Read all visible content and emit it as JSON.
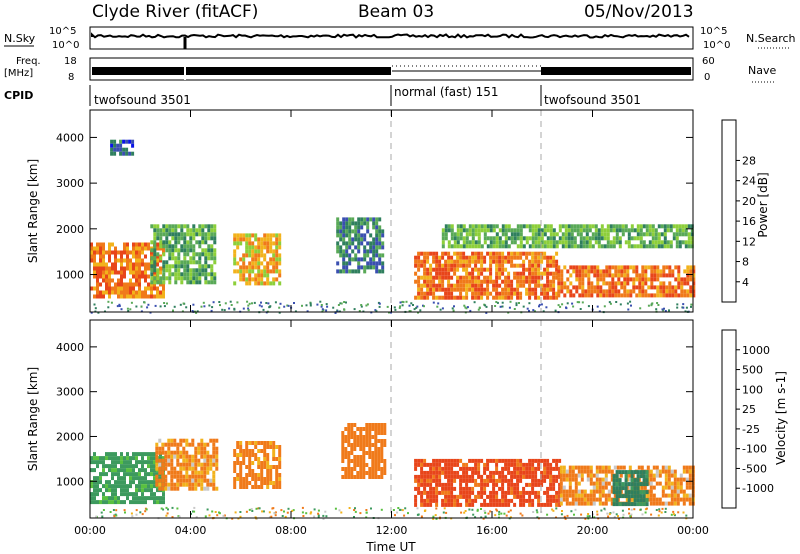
{
  "header": {
    "station": "Clyde River (fitACF)",
    "beam": "Beam 03",
    "date": "05/Nov/2013"
  },
  "status_panel": {
    "nsky_label": "N.Sky",
    "nsky_ticks": [
      "10^5",
      "10^0"
    ],
    "nsearch_label": "N.Search",
    "freq_label": "Freq.",
    "freq_unit": "[MHz]",
    "freq_ticks": [
      "18",
      "8"
    ],
    "nave_label": "Nave",
    "nave_ticks": [
      "60",
      "0"
    ],
    "cpid_label": "CPID",
    "cpid_segments": [
      {
        "label": "twofsound 3501",
        "start_hour": 0,
        "end_hour": 12
      },
      {
        "label": "normal (fast) 151",
        "start_hour": 12,
        "end_hour": 18
      },
      {
        "label": "twofsound 3501",
        "start_hour": 18,
        "end_hour": 24
      }
    ]
  },
  "chart_data": [
    {
      "type": "heatmap",
      "name": "power",
      "ylabel": "Slant Range [km]",
      "colorbar_label": "Power [dB]",
      "ylim": [
        180,
        4600
      ],
      "yticks": [
        1000,
        2000,
        3000,
        4000
      ],
      "xticks_hours": [
        0,
        4,
        8,
        12,
        16,
        20,
        24
      ],
      "colorbar_ticks": [
        4,
        8,
        12,
        16,
        20,
        24,
        28
      ],
      "colorbar_colors": [
        "#0a14e6",
        "#3a4fb0",
        "#2f7f5e",
        "#59a957",
        "#8dcf3a",
        "#f2b21c",
        "#f07a1a",
        "#e8451a",
        "#ff1a00"
      ],
      "echo_regions": [
        {
          "start_hour": 0.0,
          "end_hour": 2.9,
          "range_min": 550,
          "range_max": 1700,
          "value": 26
        },
        {
          "start_hour": 2.4,
          "end_hour": 5.0,
          "range_min": 800,
          "range_max": 2100,
          "value": 14
        },
        {
          "start_hour": 5.7,
          "end_hour": 7.5,
          "range_min": 800,
          "range_max": 1900,
          "value": 22
        },
        {
          "start_hour": 9.8,
          "end_hour": 11.6,
          "range_min": 1100,
          "range_max": 2250,
          "value": 10
        },
        {
          "start_hour": 12.9,
          "end_hour": 18.6,
          "range_min": 450,
          "range_max": 1500,
          "value": 27
        },
        {
          "start_hour": 18.6,
          "end_hour": 24.0,
          "range_min": 500,
          "range_max": 1200,
          "value": 27
        },
        {
          "start_hour": 14.0,
          "end_hour": 24.0,
          "range_min": 1650,
          "range_max": 2100,
          "value": 15
        },
        {
          "start_hour": 0.8,
          "end_hour": 1.7,
          "range_min": 3600,
          "range_max": 3950,
          "value": 8
        }
      ]
    },
    {
      "type": "heatmap",
      "name": "velocity",
      "ylabel": "Slant Range [km]",
      "xlabel": "Time UT",
      "colorbar_label": "Velocity [m s-1]",
      "ylim": [
        180,
        4600
      ],
      "yticks": [
        1000,
        2000,
        3000,
        4000
      ],
      "xticks": [
        "00:00",
        "04:00",
        "08:00",
        "12:00",
        "16:00",
        "20:00",
        "00:00"
      ],
      "xticks_hours": [
        0,
        4,
        8,
        12,
        16,
        20,
        24
      ],
      "colorbar_ticks": [
        "1000",
        "500",
        "100",
        "25",
        "-25",
        "-100",
        "-500",
        "-1000"
      ],
      "colorbar_colors": [
        "#1f3fa8",
        "#2f7f5e",
        "#3d9a5e",
        "#59c040",
        "#c8c8c8",
        "#f2b21c",
        "#f07a1a",
        "#e8451a",
        "#ff1a00"
      ],
      "echo_regions": [
        {
          "start_hour": 0.0,
          "end_hour": 2.9,
          "range_min": 550,
          "range_max": 1650,
          "value": 200
        },
        {
          "start_hour": 2.6,
          "end_hour": 5.0,
          "range_min": 850,
          "range_max": 1950,
          "value": -150
        },
        {
          "start_hour": 5.7,
          "end_hour": 7.5,
          "range_min": 850,
          "range_max": 1900,
          "value": -200
        },
        {
          "start_hour": 10.0,
          "end_hour": 11.7,
          "range_min": 1100,
          "range_max": 2300,
          "value": -300
        },
        {
          "start_hour": 12.9,
          "end_hour": 18.7,
          "range_min": 450,
          "range_max": 1500,
          "value": -600
        },
        {
          "start_hour": 18.7,
          "end_hour": 24.0,
          "range_min": 500,
          "range_max": 1350,
          "value": -150
        },
        {
          "start_hour": 20.8,
          "end_hour": 22.2,
          "range_min": 450,
          "range_max": 1250,
          "value": 600
        }
      ]
    }
  ]
}
